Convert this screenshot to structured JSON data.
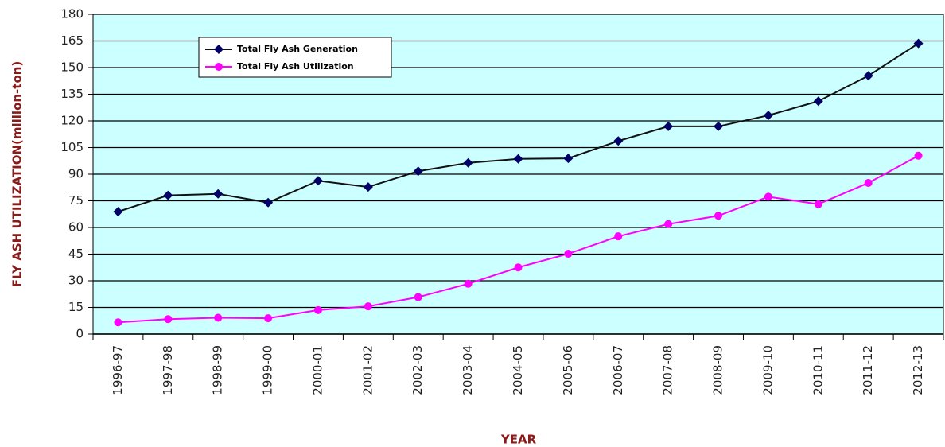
{
  "chart_data": {
    "type": "line",
    "categories": [
      "1996-97",
      "1997-98",
      "1998-99",
      "1999-00",
      "2000-01",
      "2001-02",
      "2002-03",
      "2003-04",
      "2004-05",
      "2005-06",
      "2006-07",
      "2007-08",
      "2008-09",
      "2009-10",
      "2010-11",
      "2011-12",
      "2012-13"
    ],
    "series": [
      {
        "name": "Total Fly Ash Generation",
        "color": "#000066",
        "marker": "diamond",
        "values": [
          68.9,
          78.1,
          78.9,
          74.0,
          86.3,
          82.8,
          91.7,
          96.4,
          98.6,
          98.9,
          108.7,
          116.9,
          116.9,
          123.1,
          131.1,
          145.4,
          163.6
        ]
      },
      {
        "name": "Total Fly Ash Utilization",
        "color": "#ff00ff",
        "marker": "circle",
        "values": [
          6.6,
          8.4,
          9.2,
          8.9,
          13.5,
          15.6,
          20.8,
          28.3,
          37.5,
          45.2,
          55.0,
          61.9,
          66.6,
          77.3,
          73.1,
          85.1,
          100.4
        ]
      }
    ],
    "xlabel": "YEAR",
    "ylabel": "FLY ASH UTILIZATION(million-ton)",
    "ylim": [
      0,
      180
    ],
    "yticks": [
      0,
      15,
      30,
      45,
      60,
      75,
      90,
      105,
      120,
      135,
      150,
      165,
      180
    ],
    "grid": true,
    "plot_background": "#ccffff",
    "legend": "upper left"
  }
}
